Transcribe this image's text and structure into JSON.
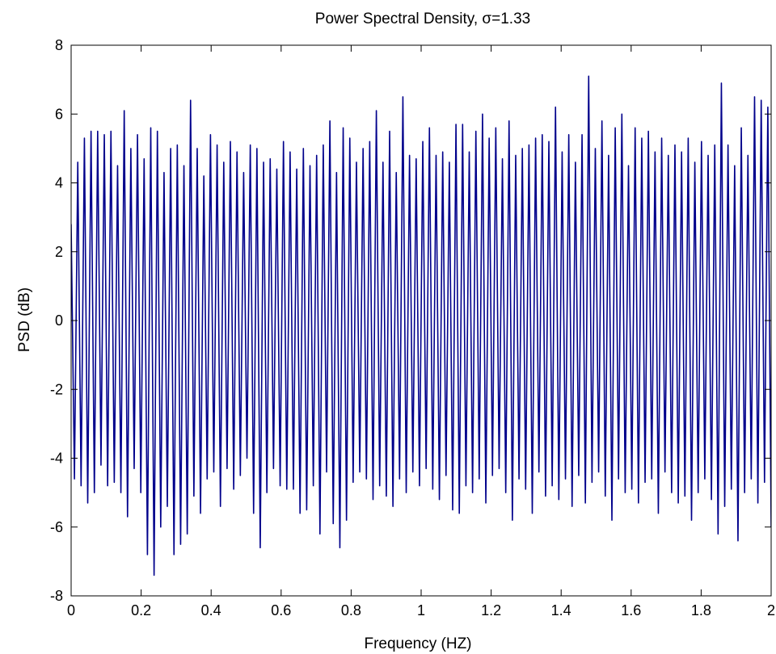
{
  "chart_data": {
    "type": "line",
    "title": "Power Spectral Density, σ=1.33",
    "xlabel": "Frequency (HZ)",
    "ylabel": "PSD (dB)",
    "xlim": [
      0,
      2
    ],
    "ylim": [
      -8,
      8
    ],
    "x_ticks": [
      0,
      0.2,
      0.4,
      0.6,
      0.8,
      1,
      1.2,
      1.4,
      1.6,
      1.8,
      2
    ],
    "x_tick_labels": [
      "0",
      "0.2",
      "0.4",
      "0.6",
      "0.8",
      "1",
      "1.2",
      "1.4",
      "1.6",
      "1.8",
      "2"
    ],
    "y_ticks": [
      -8,
      -6,
      -4,
      -2,
      0,
      2,
      4,
      6,
      8
    ],
    "y_tick_labels": [
      "-8",
      "-6",
      "-4",
      "-2",
      "0",
      "2",
      "4",
      "6",
      "8"
    ],
    "grid": false,
    "legend": false,
    "line_color": "#00008B",
    "x_step": 0.005,
    "peaks": [
      2.8,
      4.6,
      5.3,
      5.5,
      5.5,
      5.4,
      5.5,
      4.5,
      6.1,
      5.0,
      5.4,
      4.7,
      5.6,
      5.5,
      4.3,
      5.0,
      5.1,
      4.5,
      6.4,
      5.0,
      4.2,
      5.4,
      5.1,
      4.6,
      5.2,
      4.9,
      4.3,
      5.1,
      5.0,
      4.6,
      4.7,
      4.4,
      5.2,
      4.9,
      4.4,
      5.0,
      4.5,
      4.8,
      5.1,
      5.8,
      4.3,
      5.6,
      5.3,
      4.6,
      5.0,
      5.2,
      6.1,
      4.6,
      5.5,
      4.3,
      6.5,
      4.8,
      4.7,
      5.2,
      5.6,
      4.8,
      4.9,
      4.6,
      5.7,
      5.7,
      4.9,
      5.5,
      6.0,
      5.3,
      5.6,
      4.7,
      5.8,
      4.8,
      5.0,
      5.1,
      5.3,
      5.4,
      5.2,
      6.2,
      4.9,
      5.4,
      4.6,
      5.4,
      7.1,
      5.0,
      5.8,
      4.8,
      5.6,
      6.0,
      4.5,
      5.6,
      5.3,
      5.5,
      4.9,
      5.3,
      4.8,
      5.1,
      4.9,
      5.3,
      4.6,
      5.2,
      4.8,
      5.1,
      6.9,
      5.1,
      4.5,
      5.6,
      4.8,
      6.5,
      6.4,
      6.2
    ],
    "troughs": [
      -4.6,
      -4.8,
      -5.3,
      -5.0,
      -4.2,
      -4.8,
      -4.7,
      -5.0,
      -5.7,
      -4.3,
      -5.0,
      -6.8,
      -7.4,
      -6.0,
      -5.4,
      -6.8,
      -6.5,
      -6.2,
      -5.1,
      -5.6,
      -4.6,
      -4.4,
      -5.4,
      -4.3,
      -4.9,
      -4.5,
      -4.0,
      -5.6,
      -6.6,
      -5.0,
      -4.3,
      -4.8,
      -4.9,
      -4.9,
      -5.6,
      -5.5,
      -4.8,
      -6.2,
      -4.4,
      -5.9,
      -6.6,
      -5.8,
      -4.7,
      -4.4,
      -4.6,
      -5.2,
      -4.8,
      -5.1,
      -5.4,
      -4.6,
      -5.0,
      -4.4,
      -4.8,
      -4.3,
      -4.9,
      -5.2,
      -4.5,
      -5.5,
      -5.6,
      -4.8,
      -5.0,
      -4.6,
      -5.3,
      -4.5,
      -4.3,
      -5.0,
      -5.8,
      -4.6,
      -4.9,
      -5.6,
      -4.4,
      -5.1,
      -4.8,
      -5.2,
      -4.6,
      -5.4,
      -4.5,
      -5.3,
      -4.7,
      -4.4,
      -5.1,
      -5.8,
      -4.6,
      -5.0,
      -4.9,
      -5.3,
      -4.7,
      -4.6,
      -5.6,
      -4.4,
      -5.0,
      -5.3,
      -5.1,
      -5.8,
      -5.0,
      -4.6,
      -5.2,
      -6.2,
      -5.4,
      -4.9,
      -6.4,
      -5.0,
      -4.6,
      -5.3,
      -4.7,
      -6.0
    ]
  }
}
